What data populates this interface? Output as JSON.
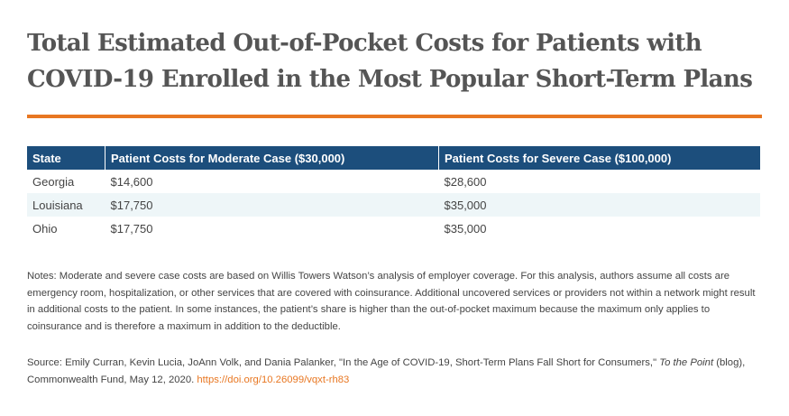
{
  "header": {
    "title": "Total Estimated Out-of-Pocket Costs for Patients with COVID-19 Enrolled in the Most Popular Short-Term Plans"
  },
  "table": {
    "columns": [
      "State",
      "Patient Costs for Moderate Case ($30,000)",
      "Patient Costs for Severe Case ($100,000)"
    ],
    "rows": [
      [
        "Georgia",
        "$14,600",
        "$28,600"
      ],
      [
        "Louisiana",
        "$17,750",
        "$35,000"
      ],
      [
        "Ohio",
        "$17,750",
        "$35,000"
      ]
    ]
  },
  "notes": "Notes: Moderate and severe case costs are based on Willis Towers Watson’s analysis of employer coverage. For this analysis, authors assume all costs are emergency room, hospitalization, or other services that are covered with coinsurance. Additional uncovered services or providers not within a network might result in additional costs to the patient. In some instances, the patient’s share is higher than the out-of-pocket maximum because the maximum only applies to coinsurance and is therefore a maximum in addition to the deductible.",
  "source": {
    "prefix": "Source:  Emily Curran, Kevin Lucia, JoAnn Volk, and Dania Palanker, \"In the Age of COVID-19, Short-Term Plans Fall Short for Consumers,\" ",
    "italic": "To the Point",
    "suffix": " (blog), Commonwealth Fund, May 12, 2020. ",
    "link": "https://doi.org/10.26099/vqxt-rh83"
  }
}
